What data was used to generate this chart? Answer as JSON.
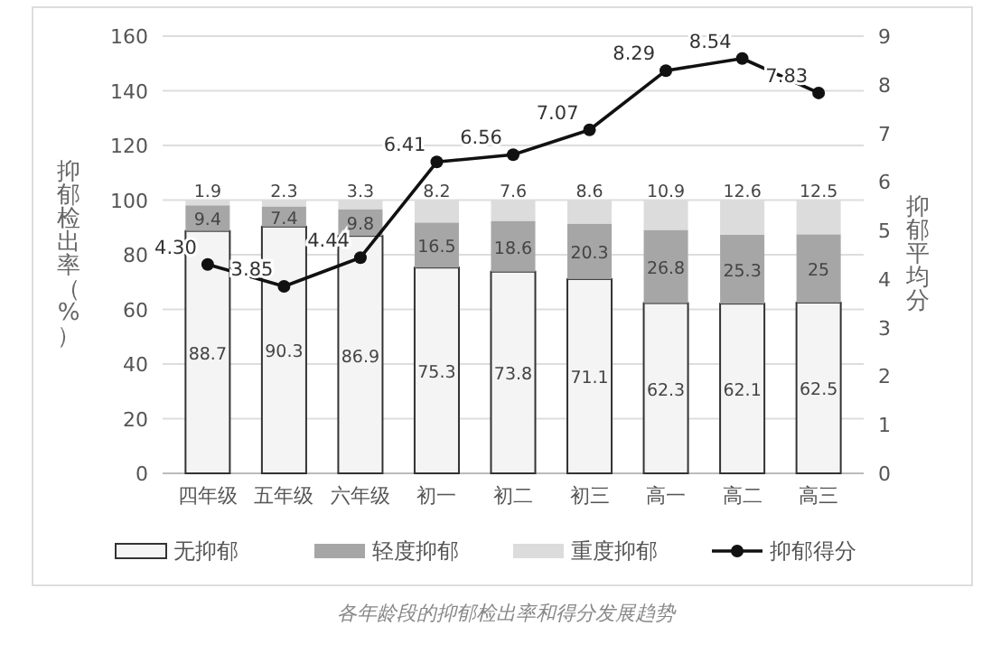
{
  "chart_data": {
    "type": "bar",
    "stacked": true,
    "categories": [
      "四年级",
      "五年级",
      "六年级",
      "初一",
      "初二",
      "初三",
      "高一",
      "高二",
      "高三"
    ],
    "ylabel": "抑郁检出率（%）",
    "y2label": "抑郁平均分",
    "ylim": [
      0,
      160
    ],
    "yticks": [
      0,
      20,
      40,
      60,
      80,
      100,
      120,
      140,
      160
    ],
    "y2lim": [
      0,
      9
    ],
    "y2ticks": [
      0,
      1,
      2,
      3,
      4,
      5,
      6,
      7,
      8,
      9
    ],
    "grid": "y",
    "legend": "bottom",
    "data_labels": true,
    "series": [
      {
        "name": "无抑郁",
        "color": "#f4f4f4",
        "values": [
          88.7,
          90.3,
          86.9,
          75.3,
          73.8,
          71.1,
          62.3,
          62.1,
          62.5
        ]
      },
      {
        "name": "轻度抑郁",
        "color": "#a6a6a6",
        "values": [
          9.4,
          7.4,
          9.8,
          16.5,
          18.6,
          20.3,
          26.8,
          25.3,
          25
        ]
      },
      {
        "name": "重度抑郁",
        "color": "#dcdcdc",
        "values": [
          1.9,
          2.3,
          3.3,
          8.2,
          7.6,
          8.6,
          10.9,
          12.6,
          12.5
        ]
      },
      {
        "name": "抑郁得分",
        "type": "line",
        "axis": "y2",
        "color": "#111111",
        "marker": "circle",
        "values": [
          4.3,
          3.85,
          4.44,
          6.41,
          6.56,
          7.07,
          8.29,
          8.54,
          7.83
        ],
        "value_labels": [
          "4.30",
          "3.85",
          "4.44",
          "6.41",
          "6.56",
          "7.07",
          "8.29",
          "8.54",
          "7.83"
        ]
      }
    ],
    "annotations": [
      "各年龄段的抑郁检出率和得分发展趋势"
    ]
  }
}
